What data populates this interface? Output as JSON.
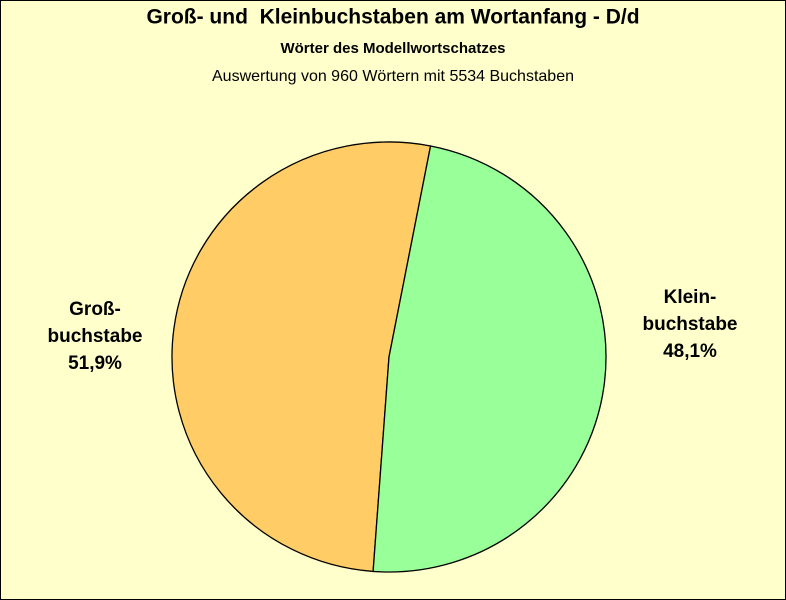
{
  "chart_data": {
    "type": "pie",
    "title": "Groß- und  Kleinbuchstaben am Wortanfang - D/d",
    "subtitle": "Wörter des Modellwortschatzes",
    "note": "Auswertung von 960 Wörtern mit 5534 Buchstaben",
    "categories": [
      "Groß-\nbuchstabe",
      "Klein-\nbuchstabe"
    ],
    "values": [
      51.9,
      48.1
    ],
    "value_labels": [
      "51,9%",
      "48,1%"
    ],
    "colors": [
      "#FFCC66",
      "#99FF99"
    ]
  }
}
